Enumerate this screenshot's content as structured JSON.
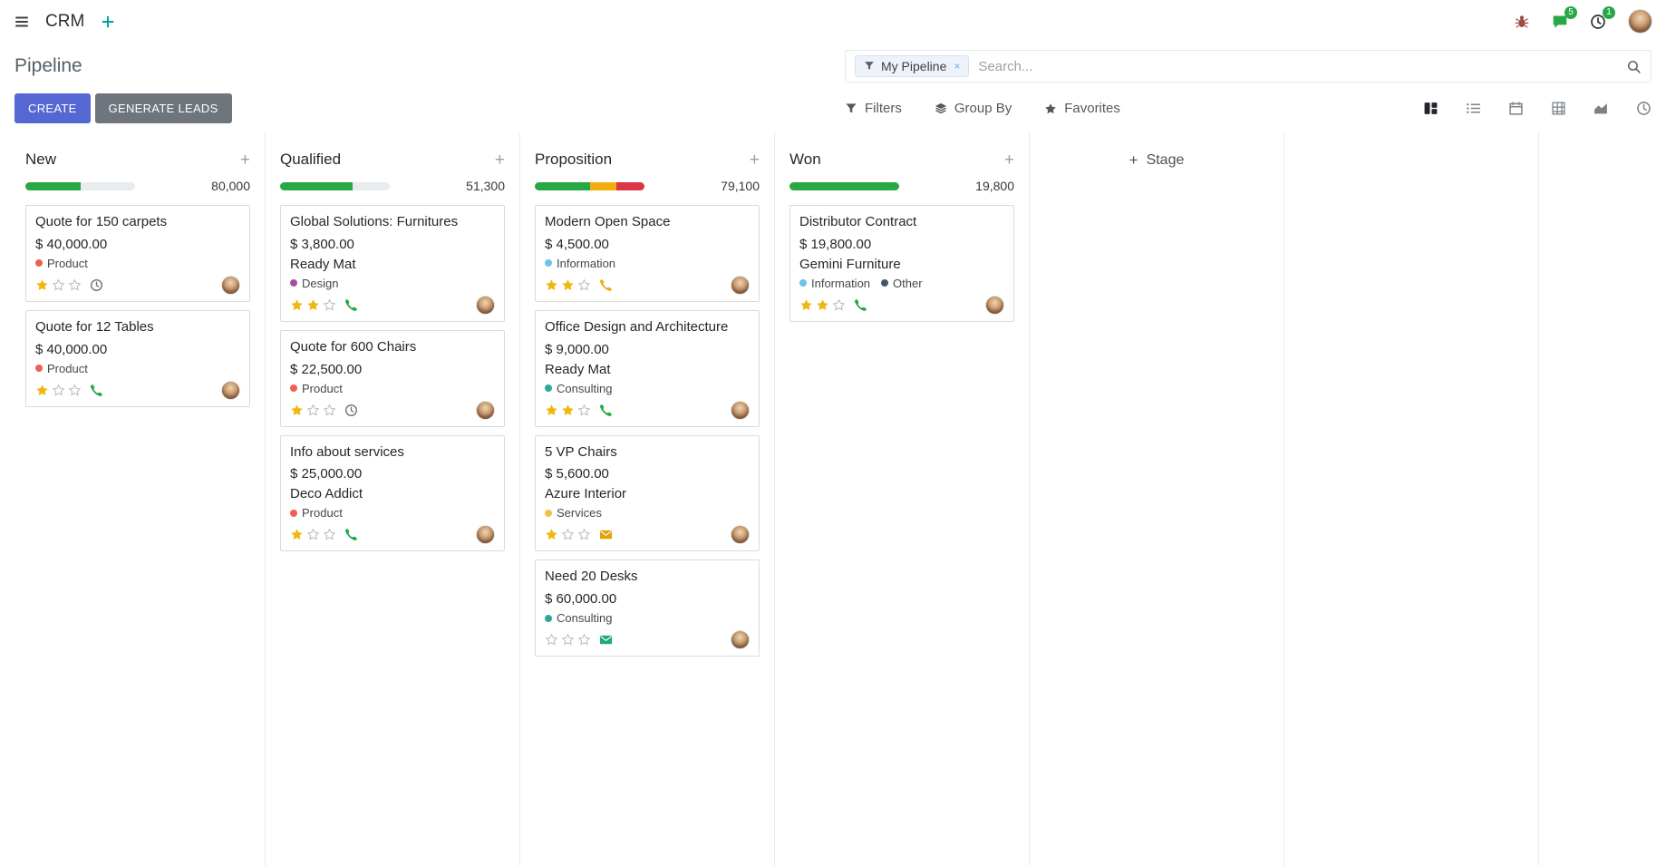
{
  "navbar": {
    "app_name": "CRM",
    "messages_badge": "5",
    "activities_badge": "1"
  },
  "control_panel": {
    "title": "Pipeline",
    "search_facet": "My Pipeline",
    "facet_remove": "×",
    "search_placeholder": "Search...",
    "create_label": "CREATE",
    "generate_leads_label": "GENERATE LEADS",
    "filters_label": "Filters",
    "group_by_label": "Group By",
    "favorites_label": "Favorites"
  },
  "colors": {
    "primary": "#5567d3",
    "success": "#28a745",
    "warning": "#f0ad0e",
    "danger": "#dc3545",
    "star_gold": "#efb810",
    "star_empty": "#b9bdc1"
  },
  "board": {
    "add_stage_label": "Stage",
    "columns": [
      {
        "name": "New",
        "total": "80,000",
        "progress": [
          {
            "color": "#28a745",
            "pct": 50
          }
        ],
        "cards": [
          {
            "title": "Quote for 150 carpets",
            "amount": "$ 40,000.00",
            "partner": "",
            "tags": [
              {
                "label": "Product",
                "color": "#f06050"
              }
            ],
            "stars": 1,
            "activity": {
              "icon": "clock",
              "color": "#6c757d"
            }
          },
          {
            "title": "Quote for 12 Tables",
            "amount": "$ 40,000.00",
            "partner": "",
            "tags": [
              {
                "label": "Product",
                "color": "#f06050"
              }
            ],
            "stars": 1,
            "activity": {
              "icon": "phone",
              "color": "#28a745"
            }
          }
        ]
      },
      {
        "name": "Qualified",
        "total": "51,300",
        "progress": [
          {
            "color": "#28a745",
            "pct": 66
          }
        ],
        "cards": [
          {
            "title": "Global Solutions: Furnitures",
            "amount": "$ 3,800.00",
            "partner": "Ready Mat",
            "tags": [
              {
                "label": "Design",
                "color": "#ad4e9c"
              }
            ],
            "stars": 2,
            "activity": {
              "icon": "phone",
              "color": "#28a745"
            }
          },
          {
            "title": "Quote for 600 Chairs",
            "amount": "$ 22,500.00",
            "partner": "",
            "tags": [
              {
                "label": "Product",
                "color": "#f06050"
              }
            ],
            "stars": 1,
            "activity": {
              "icon": "clock",
              "color": "#6c757d"
            }
          },
          {
            "title": "Info about services",
            "amount": "$ 25,000.00",
            "partner": "Deco Addict",
            "tags": [
              {
                "label": "Product",
                "color": "#f06050"
              }
            ],
            "stars": 1,
            "activity": {
              "icon": "phone",
              "color": "#28a745"
            }
          }
        ]
      },
      {
        "name": "Proposition",
        "total": "79,100",
        "progress": [
          {
            "color": "#28a745",
            "pct": 50
          },
          {
            "color": "#f0ad0e",
            "pct": 24
          },
          {
            "color": "#dc3545",
            "pct": 26
          }
        ],
        "cards": [
          {
            "title": "Modern Open Space",
            "amount": "$ 4,500.00",
            "partner": "",
            "tags": [
              {
                "label": "Information",
                "color": "#6ec3e6"
              }
            ],
            "stars": 2,
            "activity": {
              "icon": "phone",
              "color": "#f0ad0e"
            }
          },
          {
            "title": "Office Design and Architecture",
            "amount": "$ 9,000.00",
            "partner": "Ready Mat",
            "tags": [
              {
                "label": "Consulting",
                "color": "#2ba99a"
              }
            ],
            "stars": 2,
            "activity": {
              "icon": "phone",
              "color": "#28a745"
            }
          },
          {
            "title": "5 VP Chairs",
            "amount": "$ 5,600.00",
            "partner": "Azure Interior",
            "tags": [
              {
                "label": "Services",
                "color": "#efc243"
              }
            ],
            "stars": 1,
            "activity": {
              "icon": "envelope",
              "color": "#e0a306"
            }
          },
          {
            "title": "Need 20 Desks",
            "amount": "$ 60,000.00",
            "partner": "",
            "tags": [
              {
                "label": "Consulting",
                "color": "#2ba99a"
              }
            ],
            "stars": 0,
            "activity": {
              "icon": "envelope",
              "color": "#1fa97e"
            }
          }
        ]
      },
      {
        "name": "Won",
        "total": "19,800",
        "progress": [
          {
            "color": "#28a745",
            "pct": 100
          }
        ],
        "cards": [
          {
            "title": "Distributor Contract",
            "amount": "$ 19,800.00",
            "partner": "Gemini Furniture",
            "tags": [
              {
                "label": "Information",
                "color": "#6ec3e6"
              },
              {
                "label": "Other",
                "color": "#44566b"
              }
            ],
            "stars": 2,
            "activity": {
              "icon": "phone",
              "color": "#28a745"
            }
          }
        ]
      }
    ]
  }
}
